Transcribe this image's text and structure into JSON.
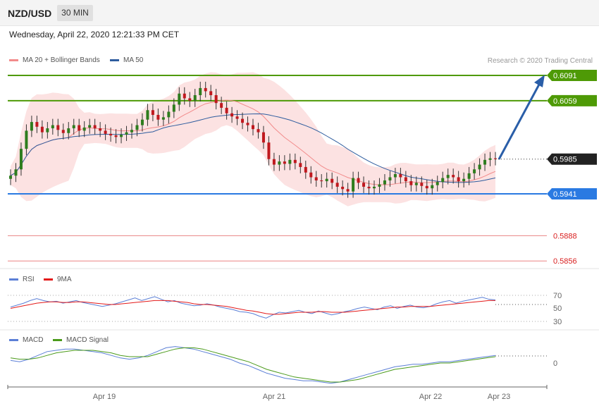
{
  "header": {
    "symbol": "NZD/USD",
    "interval": "30 MIN"
  },
  "timestamp": "Wednesday, April 22, 2020 12:21:33 PM CET",
  "legend": {
    "main": [
      {
        "label": "MA 20 + Bollinger Bands",
        "color": "#f28b8b"
      },
      {
        "label": "MA 50",
        "color": "#2e5c9e"
      }
    ],
    "rsi": [
      {
        "label": "RSI",
        "color": "#5b7fd6"
      },
      {
        "label": "9MA",
        "color": "#e31a1a"
      }
    ],
    "macd": [
      {
        "label": "MACD",
        "color": "#5b7fd6"
      },
      {
        "label": "MACD Signal",
        "color": "#4a9a1a"
      }
    ]
  },
  "credit": "Research © 2020 Trading Central",
  "chart_data": {
    "type": "candlestick",
    "pair": "NZD/USD",
    "timeframe": "30 MIN",
    "y_range": [
      0.5845,
      0.61
    ],
    "x_ticks": [
      "Apr 19",
      "Apr 21",
      "Apr 22",
      "Apr 23"
    ],
    "current_price": "0.5985",
    "levels": [
      {
        "value": "0.6091",
        "kind": "resistance",
        "color": "#4e9a06"
      },
      {
        "value": "0.6059",
        "kind": "resistance",
        "color": "#4e9a06"
      },
      {
        "value": "0.5941",
        "kind": "support",
        "color": "#2a7ae2"
      },
      {
        "value": "0.5888",
        "kind": "support",
        "color": "#d92020"
      },
      {
        "value": "0.5856",
        "kind": "support",
        "color": "#d92020"
      }
    ],
    "close_series": [
      0.5964,
      0.5972,
      0.5998,
      0.6021,
      0.6032,
      0.6026,
      0.6019,
      0.6024,
      0.6028,
      0.6022,
      0.6018,
      0.6024,
      0.6028,
      0.6021,
      0.6025,
      0.6028,
      0.6024,
      0.6021,
      0.6017,
      0.6015,
      0.6013,
      0.6016,
      0.6019,
      0.6022,
      0.6028,
      0.6035,
      0.6047,
      0.6041,
      0.6035,
      0.6038,
      0.6045,
      0.6054,
      0.6068,
      0.6062,
      0.6059,
      0.6066,
      0.6075,
      0.6071,
      0.6066,
      0.6056,
      0.605,
      0.6043,
      0.6039,
      0.6036,
      0.6031,
      0.6028,
      0.6023,
      0.6019,
      0.6006,
      0.5985,
      0.5978,
      0.5982,
      0.5979,
      0.5984,
      0.598,
      0.5975,
      0.5968,
      0.5962,
      0.5958,
      0.5957,
      0.596,
      0.5955,
      0.595,
      0.5947,
      0.5944,
      0.5961,
      0.5955,
      0.595,
      0.5948,
      0.595,
      0.5953,
      0.5958,
      0.5962,
      0.5966,
      0.5962,
      0.5957,
      0.5952,
      0.5955,
      0.5951,
      0.5948,
      0.5952,
      0.5956,
      0.5961,
      0.5965,
      0.5962,
      0.5957,
      0.596,
      0.5967,
      0.5972,
      0.5978,
      0.5984,
      0.5986,
      0.5985
    ],
    "rsi": {
      "ticks": [
        "70",
        "50",
        "30"
      ],
      "rsi_series": [
        52,
        55,
        58,
        62,
        65,
        62,
        60,
        61,
        58,
        60,
        62,
        59,
        57,
        55,
        53,
        55,
        57,
        60,
        63,
        66,
        62,
        65,
        68,
        64,
        60,
        62,
        58,
        56,
        54,
        55,
        57,
        55,
        52,
        50,
        48,
        45,
        44,
        42,
        38,
        35,
        40,
        44,
        43,
        45,
        47,
        44,
        42,
        46,
        43,
        40,
        42,
        45,
        47,
        50,
        52,
        50,
        48,
        52,
        54,
        50,
        53,
        55,
        52,
        51,
        53,
        57,
        60,
        62,
        58,
        61,
        63,
        65,
        67,
        64,
        63
      ],
      "ma_series": [
        50,
        52,
        54,
        56,
        58,
        59,
        60,
        60,
        59,
        59,
        60,
        60,
        59,
        58,
        57,
        56,
        56,
        57,
        58,
        59,
        60,
        61,
        62,
        62,
        62,
        61,
        60,
        59,
        57,
        56,
        56,
        55,
        54,
        53,
        51,
        49,
        47,
        46,
        44,
        42,
        41,
        41,
        42,
        43,
        44,
        44,
        44,
        45,
        45,
        44,
        44,
        44,
        45,
        46,
        47,
        48,
        49,
        50,
        51,
        52,
        52,
        53,
        53,
        53,
        53,
        54,
        55,
        56,
        57,
        58,
        59,
        60,
        61,
        62,
        62
      ]
    },
    "macd": {
      "ticks": [
        "0"
      ],
      "macd_series": [
        2,
        1,
        3,
        6,
        9,
        10,
        11,
        11,
        10,
        9,
        8,
        6,
        4,
        3,
        4,
        6,
        9,
        12,
        13,
        12,
        11,
        9,
        7,
        5,
        3,
        0,
        -2,
        -5,
        -8,
        -10,
        -12,
        -13,
        -14,
        -14,
        -15,
        -16,
        -15,
        -13,
        -11,
        -9,
        -7,
        -5,
        -3,
        -2,
        -1,
        -1,
        0,
        1,
        1,
        2,
        3,
        4,
        5,
        6
      ],
      "signal_series": [
        4,
        3,
        3,
        4,
        6,
        8,
        9,
        10,
        10,
        10,
        9,
        8,
        6,
        5,
        5,
        5,
        7,
        9,
        11,
        12,
        12,
        11,
        9,
        7,
        5,
        3,
        1,
        -2,
        -5,
        -7,
        -9,
        -11,
        -12,
        -13,
        -14,
        -15,
        -15,
        -14,
        -13,
        -11,
        -9,
        -7,
        -5,
        -4,
        -3,
        -2,
        -1,
        0,
        0,
        1,
        2,
        3,
        4,
        5
      ]
    }
  }
}
